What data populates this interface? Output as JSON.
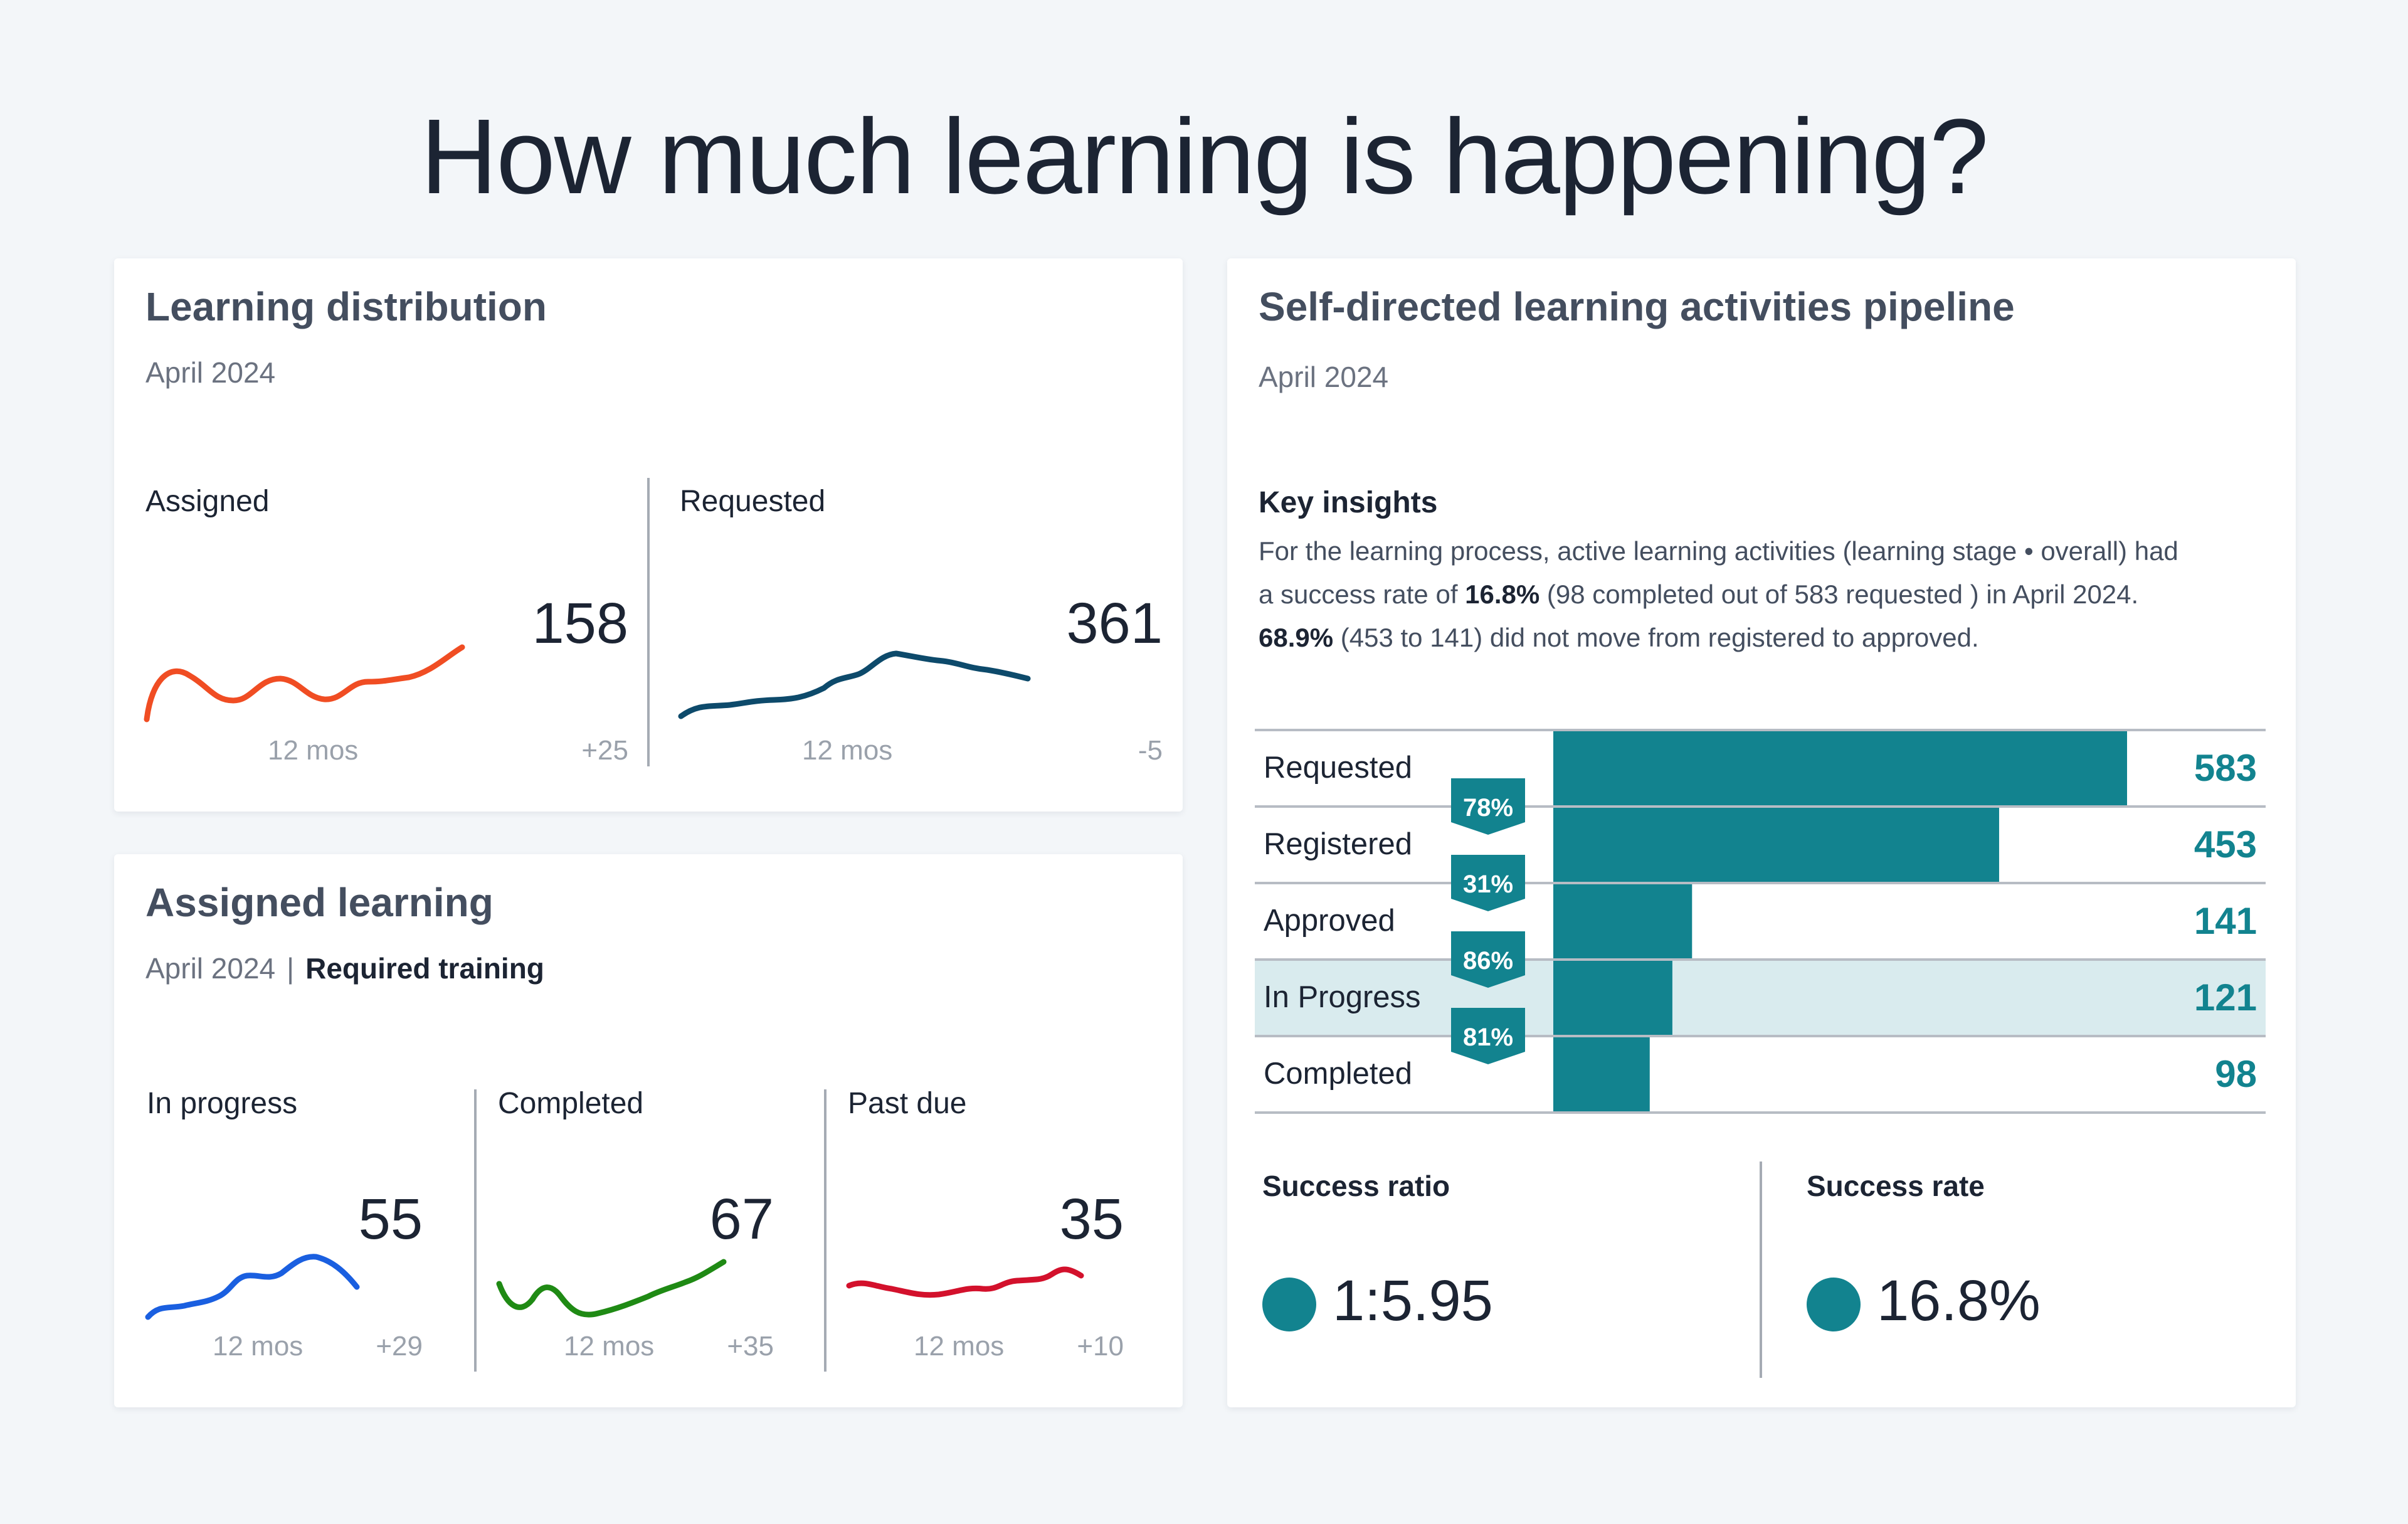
{
  "page": {
    "title": "How much learning is happening?"
  },
  "learning_distribution": {
    "title": "Learning distribution",
    "date": "April 2024",
    "metrics": [
      {
        "label": "Assigned",
        "value": "158",
        "period": "12 mos",
        "delta": "+25",
        "color": "#f04d23"
      },
      {
        "label": "Requested",
        "value": "361",
        "period": "12 mos",
        "delta": "-5",
        "color": "#0d4a6b"
      }
    ]
  },
  "assigned_learning": {
    "title": "Assigned learning",
    "date": "April 2024",
    "separator": "|",
    "filter": "Required training",
    "metrics": [
      {
        "label": "In progress",
        "value": "55",
        "period": "12 mos",
        "delta": "+29",
        "color": "#1a5fe0"
      },
      {
        "label": "Completed",
        "value": "67",
        "period": "12 mos",
        "delta": "+35",
        "color": "#1f8a14"
      },
      {
        "label": "Past due",
        "value": "35",
        "period": "12 mos",
        "delta": "+10",
        "color": "#d3112c"
      }
    ]
  },
  "pipeline": {
    "title": "Self-directed learning activities pipeline",
    "date": "April 2024",
    "key_insights_title": "Key insights",
    "key_insights": {
      "line1": "For the learning process, active learning activities (learning stage • overall) had",
      "line2_pre": "a success rate of ",
      "line2_bold": "16.8%",
      "line2_post": " (98 completed out of 583 requested ) in April 2024.",
      "line3_bold": "68.9%",
      "line3_post": " (453 to 141) did not move from registered to approved."
    },
    "accent_color": "#12838f",
    "highlight_color": "#d9ebee",
    "chart_data": {
      "type": "bar",
      "orientation": "horizontal-funnel",
      "categories": [
        "Requested",
        "Registered",
        "Approved",
        "In Progress",
        "Completed"
      ],
      "values": [
        583,
        453,
        141,
        121,
        98
      ],
      "conversion_labels": [
        "78%",
        "31%",
        "86%",
        "81%"
      ],
      "highlighted": "In Progress"
    },
    "success_ratio": {
      "label": "Success ratio",
      "value": "1:5.95"
    },
    "success_rate": {
      "label": "Success rate",
      "value": "16.8%"
    }
  }
}
